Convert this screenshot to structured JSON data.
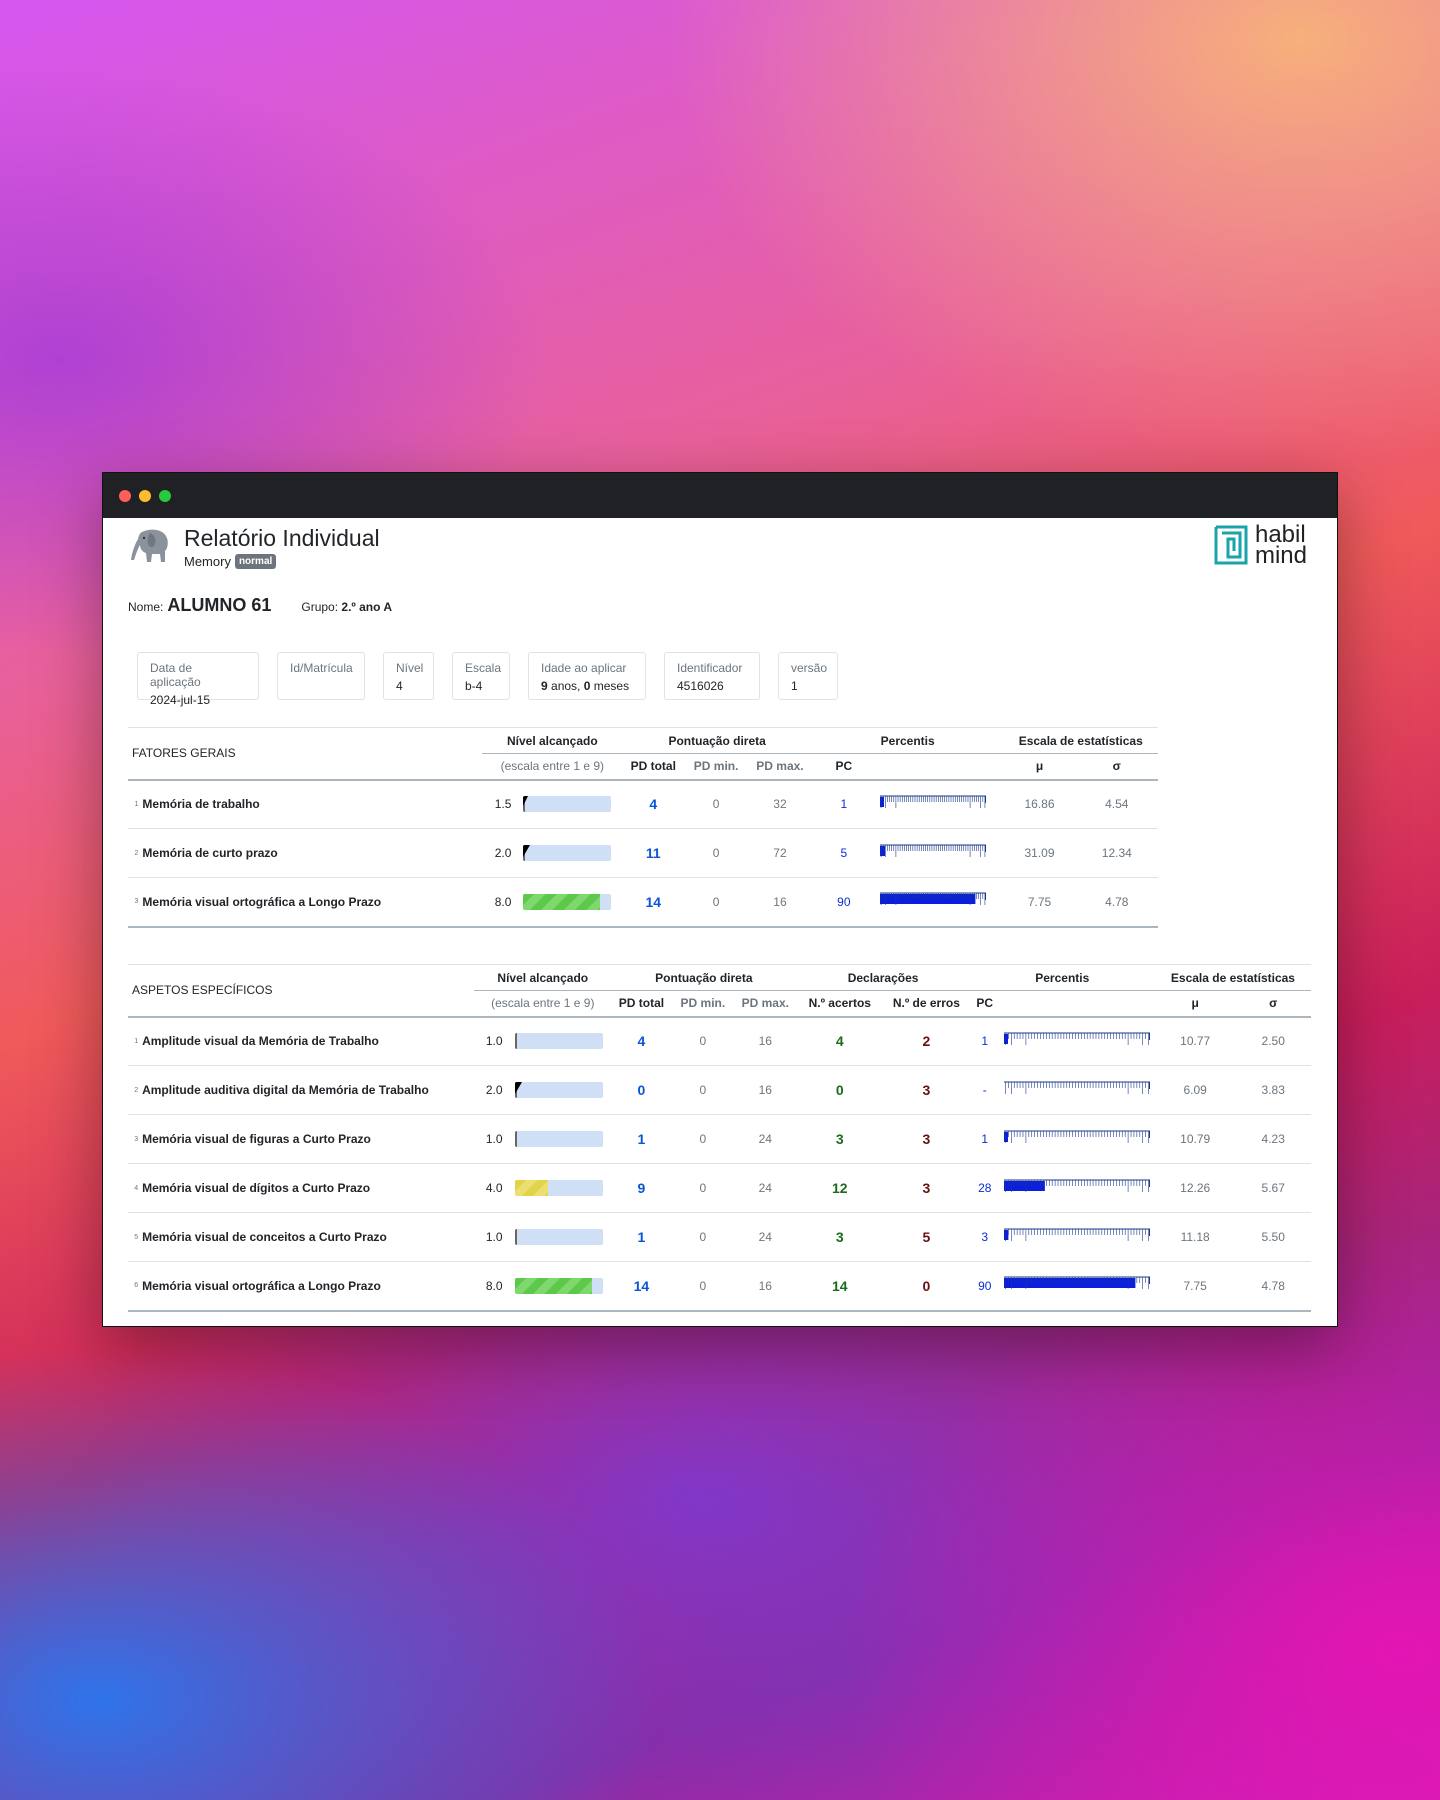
{
  "window": {
    "controls": {
      "close": "#ff5f57",
      "minimize": "#febc2e",
      "zoom": "#28c840"
    }
  },
  "header": {
    "title": "Relatório Individual",
    "subtitle": "Memory",
    "badge": "normal",
    "logo_line1": "habil",
    "logo_line2": "mind"
  },
  "student": {
    "name_label": "Nome:",
    "name": "ALUMNO 61",
    "group_label": "Grupo:",
    "group": "2.º ano A"
  },
  "cards": [
    {
      "label": "Data de aplicação",
      "value": "2024-jul-15"
    },
    {
      "label": "Id/Matrícula",
      "value": ""
    },
    {
      "label": "Nível",
      "value": "4"
    },
    {
      "label": "Escala",
      "value": "b-4"
    },
    {
      "label": "Idade ao aplicar",
      "years": "9",
      "years_unit": " anos, ",
      "months": "0",
      "months_unit": " meses"
    },
    {
      "label": "Identificador",
      "value": "4516026"
    },
    {
      "label": "versão",
      "value": "1"
    }
  ],
  "headers": {
    "nivel": "Nível alcançado",
    "nivel_sub": "(escala entre 1 e 9)",
    "pontuacao": "Pontuação direta",
    "pd_total": "PD total",
    "pd_min": "PD min.",
    "pd_max": "PD max.",
    "percentis": "Percentis",
    "pc": "PC",
    "estat": "Escala de estatísticas",
    "mu": "μ",
    "sigma": "σ",
    "declaracoes": "Declarações",
    "acertos": "N.º acertos",
    "erros": "N.º de erros"
  },
  "general": {
    "label": "FATORES GERAIS",
    "rows": [
      {
        "idx": "1",
        "name": "Memória de trabalho",
        "level": "1.5",
        "pd_total": "4",
        "pd_min": "0",
        "pd_max": "32",
        "pc": "1",
        "mu": "16.86",
        "sigma": "4.54"
      },
      {
        "idx": "2",
        "name": "Memória de curto prazo",
        "level": "2.0",
        "pd_total": "11",
        "pd_min": "0",
        "pd_max": "72",
        "pc": "5",
        "mu": "31.09",
        "sigma": "12.34"
      },
      {
        "idx": "3",
        "name": "Memória visual ortográfica a Longo Prazo",
        "level": "8.0",
        "pd_total": "14",
        "pd_min": "0",
        "pd_max": "16",
        "pc": "90",
        "mu": "7.75",
        "sigma": "4.78"
      }
    ]
  },
  "specific": {
    "label": "ASPETOS ESPECÍFICOS",
    "rows": [
      {
        "idx": "1",
        "name": "Amplitude visual da Memória de Trabalho",
        "level": "1.0",
        "pd_total": "4",
        "pd_min": "0",
        "pd_max": "16",
        "acertos": "4",
        "erros": "2",
        "pc": "1",
        "mu": "10.77",
        "sigma": "2.50"
      },
      {
        "idx": "2",
        "name": "Amplitude auditiva digital da Memória de Trabalho",
        "level": "2.0",
        "pd_total": "0",
        "pd_min": "0",
        "pd_max": "16",
        "acertos": "0",
        "erros": "3",
        "pc": "-",
        "mu": "6.09",
        "sigma": "3.83"
      },
      {
        "idx": "3",
        "name": "Memória visual de figuras a Curto Prazo",
        "level": "1.0",
        "pd_total": "1",
        "pd_min": "0",
        "pd_max": "24",
        "acertos": "3",
        "erros": "3",
        "pc": "1",
        "mu": "10.79",
        "sigma": "4.23"
      },
      {
        "idx": "4",
        "name": "Memória visual de dígitos a Curto Prazo",
        "level": "4.0",
        "pd_total": "9",
        "pd_min": "0",
        "pd_max": "24",
        "acertos": "12",
        "erros": "3",
        "pc": "28",
        "mu": "12.26",
        "sigma": "5.67"
      },
      {
        "idx": "5",
        "name": "Memória visual de conceitos a Curto Prazo",
        "level": "1.0",
        "pd_total": "1",
        "pd_min": "0",
        "pd_max": "24",
        "acertos": "3",
        "erros": "5",
        "pc": "3",
        "mu": "11.18",
        "sigma": "5.50"
      },
      {
        "idx": "6",
        "name": "Memória visual ortográfica a Longo Prazo",
        "level": "8.0",
        "pd_total": "14",
        "pd_min": "0",
        "pd_max": "16",
        "acertos": "14",
        "erros": "0",
        "pc": "90",
        "mu": "7.75",
        "sigma": "4.78"
      }
    ]
  },
  "level_bar": {
    "scale_min": 1,
    "scale_max": 9,
    "colors": {
      "low": "#cfe0f6",
      "mid": "#e2d44a",
      "high": "#5cc94a"
    }
  },
  "percentile_bar": {
    "color": "#0a1ee0",
    "tick_color": "#1a3a8a"
  }
}
